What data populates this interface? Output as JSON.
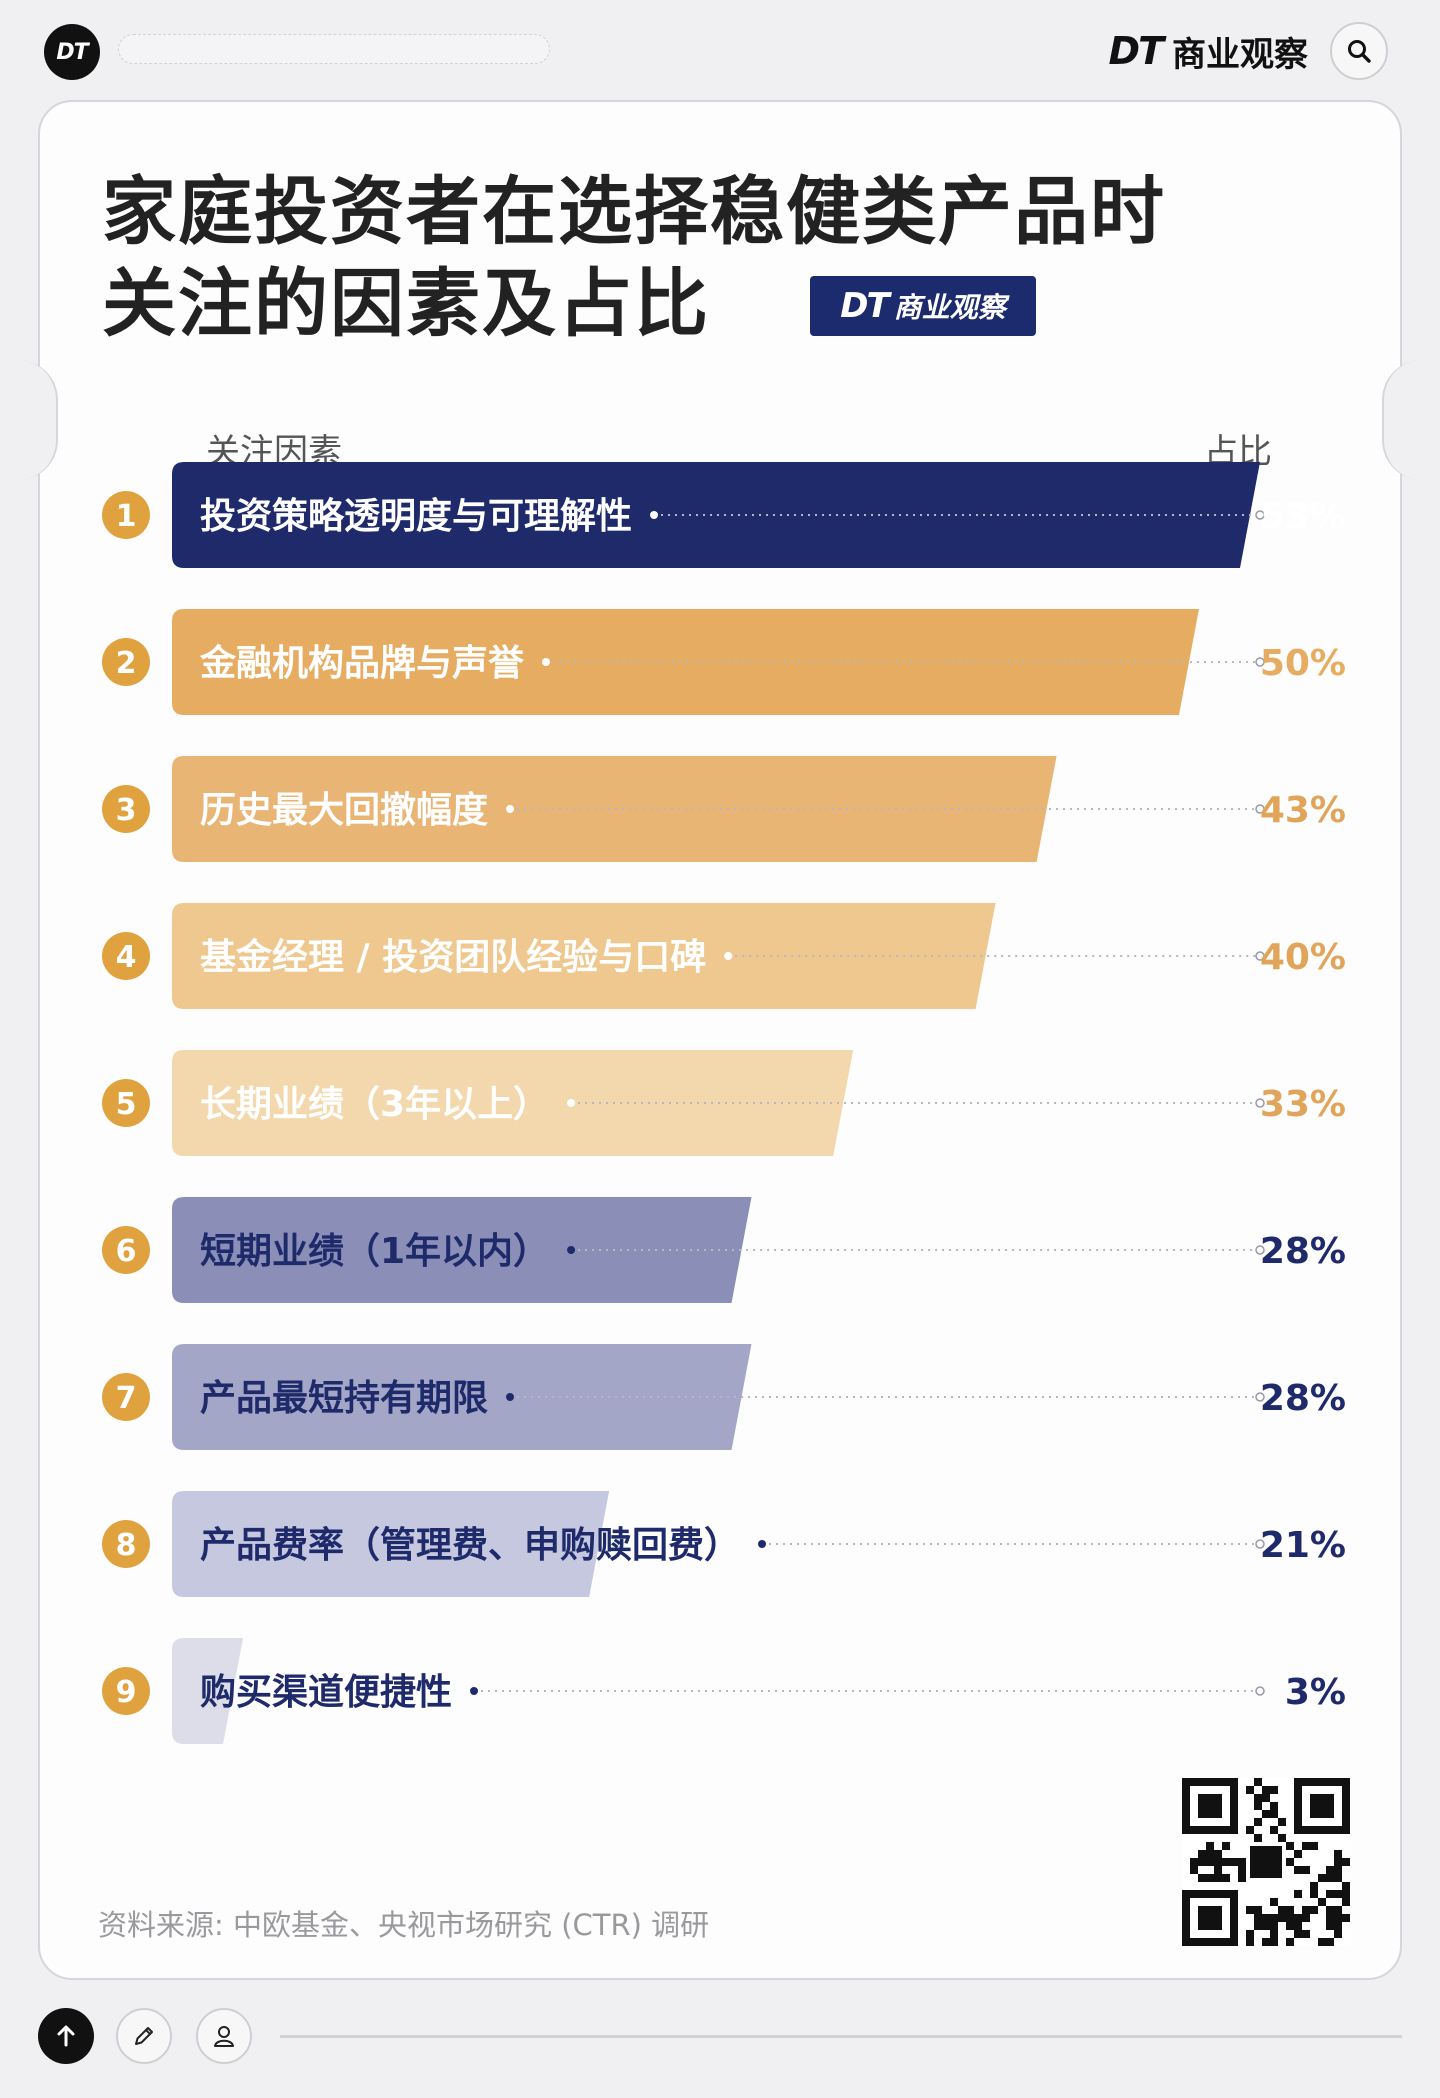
{
  "header": {
    "logo_text": "DT",
    "brand_dt": "DT",
    "brand_name": "商业观察",
    "search_icon": "search-icon"
  },
  "card": {
    "title_line1": "家庭投资者在选择稳健类产品时",
    "title_line2": "关注的因素及占比",
    "badge_dt": "DT",
    "badge_cn": "商业观察",
    "col_left": "关注因素",
    "col_right": "占比",
    "source": "资料来源: 中欧基金、央视市场研究 (CTR) 调研"
  },
  "chart_data": {
    "type": "bar",
    "orientation": "horizontal",
    "categories": [
      "投资策略透明度与可理解性",
      "金融机构品牌与声誉",
      "历史最大回撤幅度",
      "基金经理 / 投资团队经验与口碑",
      "长期业绩（3年以上）",
      "短期业绩（1年以内）",
      "产品最短持有期限",
      "产品费率（管理费、申购赎回费）",
      "购买渠道便捷性"
    ],
    "ranks": [
      "1",
      "2",
      "3",
      "4",
      "5",
      "6",
      "7",
      "8",
      "9"
    ],
    "values": [
      53,
      50,
      43,
      40,
      33,
      28,
      28,
      21,
      3
    ],
    "value_labels": [
      "53%",
      "50%",
      "43%",
      "40%",
      "33%",
      "28%",
      "28%",
      "21%",
      "3%"
    ],
    "unit": "%",
    "xlim": [
      0,
      53
    ],
    "bar_colors": [
      "#1f2a6b",
      "#e6ad62",
      "#e9b575",
      "#efc88f",
      "#f3d8ad",
      "#8b8fb8",
      "#a3a6c6",
      "#c5c8de",
      "#dcdde8"
    ],
    "label_colors": [
      "#ffffff",
      "#ffffff",
      "#ffffff",
      "#ffffff",
      "#ffffff",
      "#1f2a6b",
      "#1f2a6b",
      "#1f2a6b",
      "#1f2a6b"
    ],
    "value_colors": [
      "#ffffff",
      "#e6ad62",
      "#e0a55a",
      "#e0a55a",
      "#e0a55a",
      "#1f2a6b",
      "#1f2a6b",
      "#1f2a6b",
      "#1f2a6b"
    ],
    "rank_color": "#e0a23f",
    "grid": false,
    "legend": "none"
  },
  "footer": {
    "up_icon": "arrow-up-icon",
    "edit_icon": "pencil-icon",
    "user_icon": "user-icon"
  }
}
